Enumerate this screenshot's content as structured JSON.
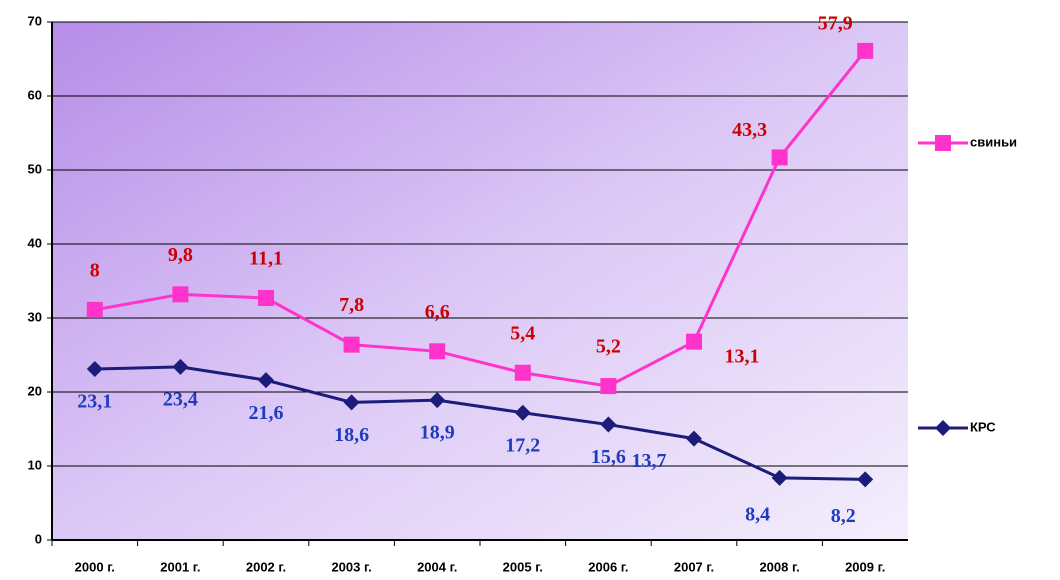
{
  "chart_data": {
    "type": "line",
    "stacked": true,
    "categories": [
      "2000 г.",
      "2001 г.",
      "2002 г.",
      "2003 г.",
      "2004 г.",
      "2005 г.",
      "2006 г.",
      "2007 г.",
      "2008 г.",
      "2009 г."
    ],
    "series": [
      {
        "name": "КРС",
        "color": "#1c1c7a",
        "marker": "diamond",
        "label_color": "#1f3cc0",
        "values": [
          23.1,
          23.4,
          21.6,
          18.6,
          18.9,
          17.2,
          15.6,
          13.7,
          8.4,
          8.2
        ],
        "value_labels": [
          "23,1",
          "23,4",
          "21,6",
          "18,6",
          "18,9",
          "17,2",
          "15,6",
          "13,7",
          "8,4",
          "8,2"
        ]
      },
      {
        "name": "свиньи",
        "color": "#ff33cc",
        "marker": "square",
        "label_color": "#cc0000",
        "values": [
          8,
          9.8,
          11.1,
          7.8,
          6.6,
          5.4,
          5.2,
          13.1,
          43.3,
          57.9
        ],
        "value_labels": [
          "8",
          "9,8",
          "11,1",
          "7,8",
          "6,6",
          "5,4",
          "5,2",
          "13,1",
          "43,3",
          "57,9"
        ]
      }
    ],
    "ylim": [
      0,
      70
    ],
    "yticks": [
      0,
      10,
      20,
      30,
      40,
      50,
      60,
      70
    ],
    "grid": true,
    "legend": "right"
  }
}
